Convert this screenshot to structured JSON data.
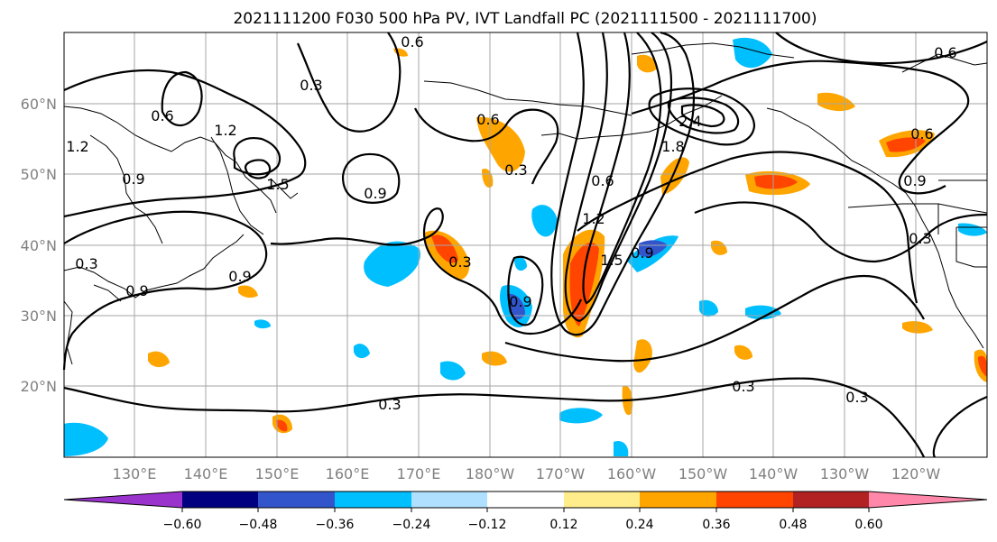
{
  "title": "2021111200 F030 500 hPa PV, IVT Landfall PC (2021111500 - 2021111700)",
  "map": {
    "lat_labels": [
      "60°N",
      "50°N",
      "40°N",
      "30°N",
      "20°N"
    ],
    "lon_labels": [
      "130°E",
      "140°E",
      "150°E",
      "160°E",
      "170°E",
      "180°W",
      "170°W",
      "160°W",
      "150°W",
      "140°W",
      "130°W",
      "120°W"
    ],
    "contour_labels": [
      "0.6",
      "0.3",
      "0.6",
      "1.2",
      "1.2",
      "0.9",
      "1.5",
      "0.9",
      "0.3",
      "0.9",
      "0.9",
      "0.3",
      "0.9",
      "0.3",
      "0.6",
      "1.2",
      "1.5",
      "0.9",
      "2.4",
      "1.8",
      "0.6",
      "0.6",
      "0.9",
      "0.3",
      "0.3",
      "0.3",
      "0.3",
      "0.6"
    ],
    "gridline_color": "#a6a6a6",
    "coast_color": "#000000"
  },
  "colorbar": {
    "ticks": [
      "−0.60",
      "−0.48",
      "−0.36",
      "−0.24",
      "−0.12",
      "0.12",
      "0.24",
      "0.36",
      "0.48",
      "0.60"
    ],
    "colors": [
      "#9933cc",
      "#000080",
      "#3355cc",
      "#00bfff",
      "#b0e0ff",
      "#ffffff",
      "#ffec8b",
      "#ffa500",
      "#ff4500",
      "#b22222",
      "#ff88aa"
    ],
    "extend": "both"
  }
}
